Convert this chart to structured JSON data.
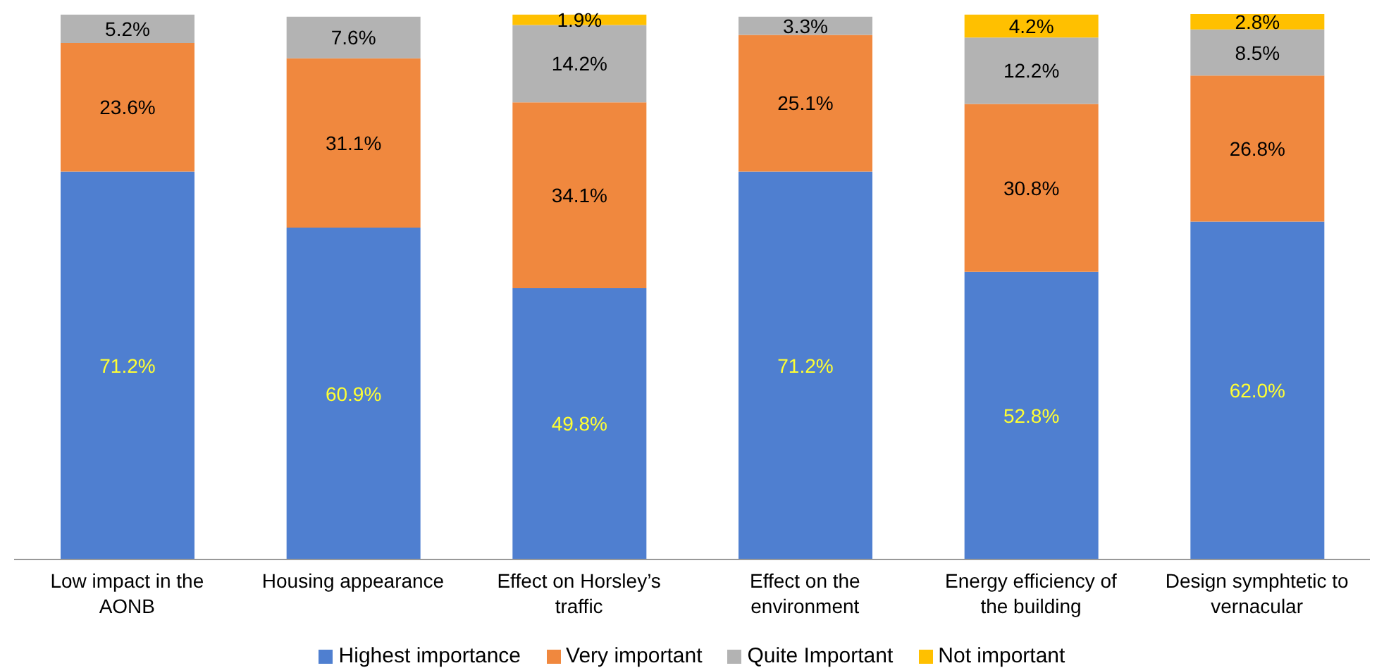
{
  "chart_data": {
    "type": "bar",
    "stacked": true,
    "tick_labels": "x",
    "legend": "bottom",
    "grid": false,
    "categories": [
      "Low impact in the AONB",
      "Housing appearance",
      "Effect on Horsley’s traffic",
      "Effect on the environment",
      "Energy efficiency of the building",
      "Design symphtetic to vernacular"
    ],
    "series": [
      {
        "name": "Highest importance",
        "color": "#4f7fd0",
        "values": [
          71.2,
          60.9,
          49.8,
          71.2,
          52.8,
          62.0
        ],
        "value_labels": [
          "71.2%",
          "60.9%",
          "49.8%",
          "71.2%",
          "52.8%",
          "62.0%"
        ]
      },
      {
        "name": "Very important",
        "color": "#f0883e",
        "values": [
          23.6,
          31.1,
          34.1,
          25.1,
          30.8,
          26.8
        ],
        "value_labels": [
          "23.6%",
          "31.1%",
          "34.1%",
          "25.1%",
          "30.8%",
          "26.8%"
        ]
      },
      {
        "name": "Quite Important",
        "color": "#b3b3b3",
        "values": [
          5.2,
          7.6,
          14.2,
          3.3,
          12.2,
          8.5
        ],
        "value_labels": [
          "5.2%",
          "7.6%",
          "14.2%",
          "3.3%",
          "12.2%",
          "8.5%"
        ]
      },
      {
        "name": "Not important",
        "color": "#ffc000",
        "values": [
          null,
          null,
          1.9,
          null,
          4.2,
          2.8
        ],
        "value_labels": [
          null,
          null,
          "1.9%",
          null,
          "4.2%",
          "2.8%"
        ]
      }
    ]
  }
}
